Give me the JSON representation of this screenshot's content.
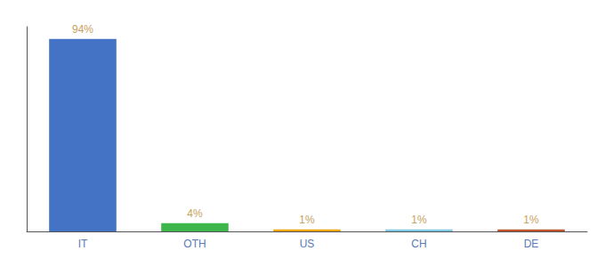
{
  "chart_data": {
    "type": "bar",
    "categories": [
      "IT",
      "OTH",
      "US",
      "CH",
      "DE"
    ],
    "values": [
      94,
      4,
      1,
      1,
      1
    ],
    "value_labels": [
      "94%",
      "4%",
      "1%",
      "1%",
      "1%"
    ],
    "colors": [
      "#4472c4",
      "#3cb54a",
      "#f0a500",
      "#7ec8e3",
      "#c0542a"
    ],
    "data_labels": true,
    "ylim": [
      0,
      100
    ],
    "grid": false,
    "tick_labels": "x"
  }
}
